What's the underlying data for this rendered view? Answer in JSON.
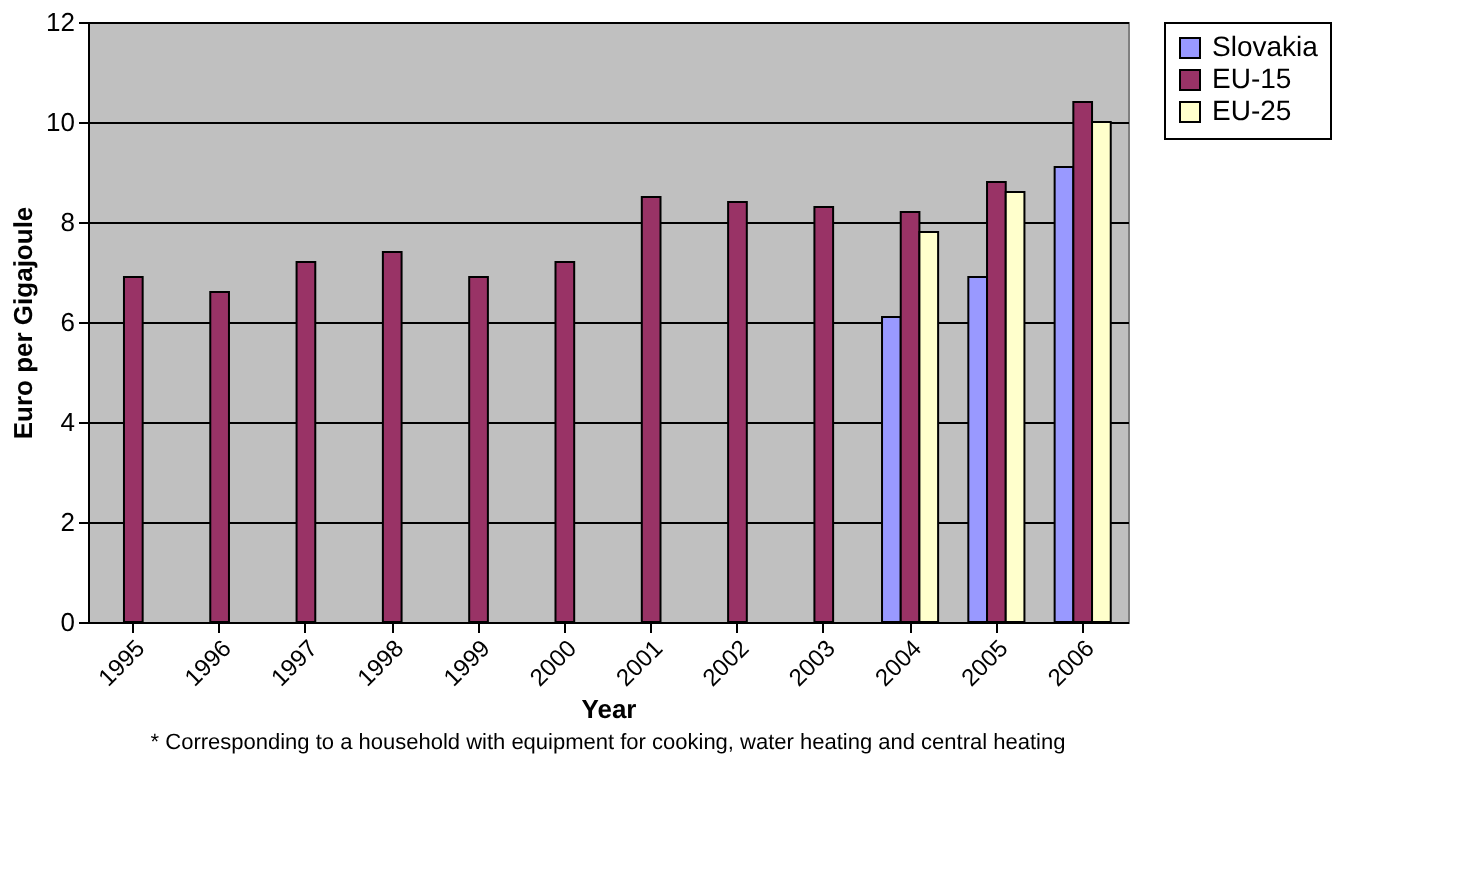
{
  "chart_data": {
    "type": "bar",
    "xlabel": "Year",
    "ylabel": "Euro per Gigajoule",
    "categories": [
      "1995",
      "1996",
      "1997",
      "1998",
      "1999",
      "2000",
      "2001",
      "2002",
      "2003",
      "2004",
      "2005",
      "2006"
    ],
    "series": [
      {
        "name": "Slovakia",
        "color": "#9999ff",
        "values": [
          null,
          null,
          null,
          null,
          null,
          null,
          null,
          null,
          null,
          6.1,
          6.9,
          9.1
        ]
      },
      {
        "name": "EU-15",
        "color": "#993366",
        "values": [
          6.9,
          6.6,
          7.2,
          7.4,
          6.9,
          7.2,
          8.5,
          8.4,
          8.3,
          8.2,
          8.8,
          10.4
        ]
      },
      {
        "name": "EU-25",
        "color": "#ffffcc",
        "values": [
          null,
          null,
          null,
          null,
          null,
          null,
          null,
          null,
          null,
          7.8,
          8.6,
          10.0
        ]
      }
    ],
    "ylim": [
      0,
      12
    ],
    "yticks": [
      0,
      2,
      4,
      6,
      8,
      10,
      12
    ],
    "grid": "y",
    "legend": "right",
    "annotations": [
      "* Corresponding to a household with equipment for cooking, water heating and central heating"
    ]
  }
}
